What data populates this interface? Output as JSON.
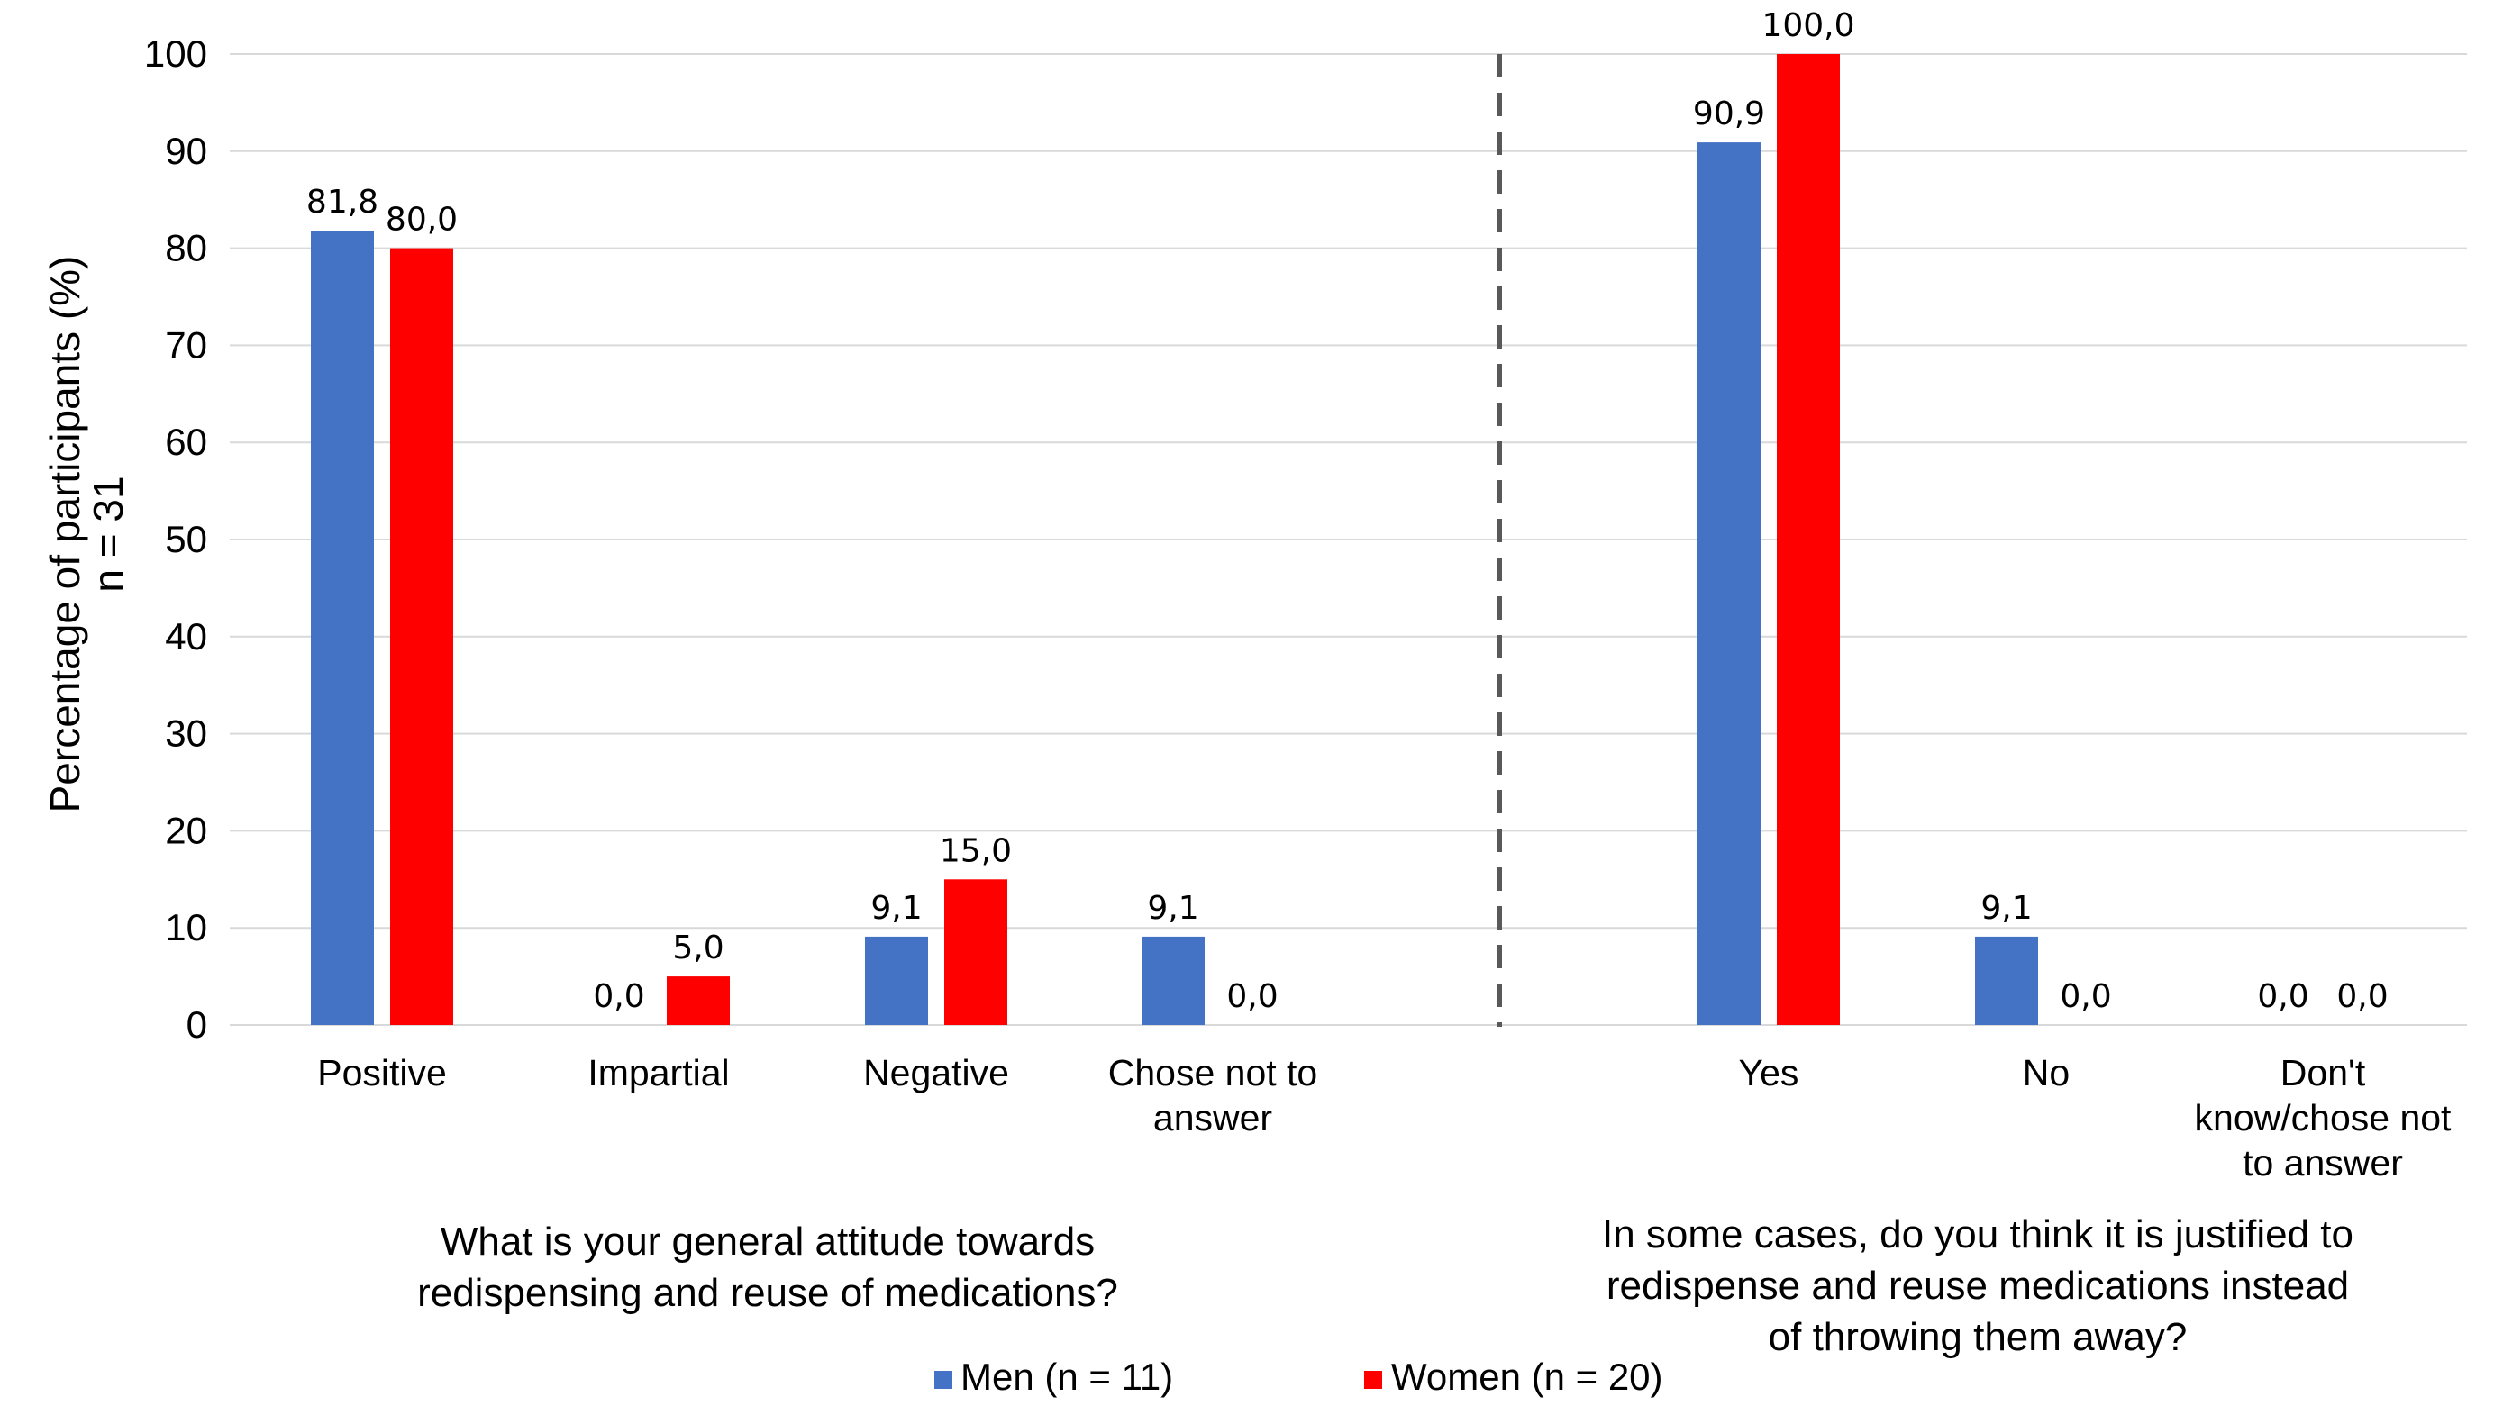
{
  "chart_data": {
    "type": "bar",
    "ylabel": "Percentage of participants (%)",
    "ylabel_line2": "n = 31",
    "ylim": [
      0,
      100
    ],
    "yticks": [
      0,
      10,
      20,
      30,
      40,
      50,
      60,
      70,
      80,
      90,
      100
    ],
    "grid": true,
    "legend_position": "bottom",
    "groups": [
      {
        "title": [
          "What is your general attitude towards",
          "redispensing and reuse of medications?"
        ],
        "categories": [
          [
            "Positive"
          ],
          [
            "Impartial"
          ],
          [
            "Negative"
          ],
          [
            "Chose not to",
            "answer"
          ]
        ],
        "series": [
          {
            "name": "Men (n = 11)",
            "values": [
              81.8,
              0.0,
              9.1,
              9.1
            ],
            "labels": [
              "81,8",
              "0,0",
              "9,1",
              "9,1"
            ]
          },
          {
            "name": "Women (n = 20)",
            "values": [
              80.0,
              5.0,
              15.0,
              0.0
            ],
            "labels": [
              "80,0",
              "5,0",
              "15,0",
              "0,0"
            ]
          }
        ]
      },
      {
        "title": [
          "In some cases, do you think it is justified to",
          "redispense and reuse medications instead",
          "of throwing them away?"
        ],
        "categories": [
          [
            "Yes"
          ],
          [
            "No"
          ],
          [
            "Don't",
            "know/chose not",
            "to answer"
          ]
        ],
        "series": [
          {
            "name": "Men (n = 11)",
            "values": [
              90.9,
              9.1,
              0.0
            ],
            "labels": [
              "90,9",
              "9,1",
              "0,0"
            ]
          },
          {
            "name": "Women (n = 20)",
            "values": [
              100.0,
              0.0,
              0.0
            ],
            "labels": [
              "100,0",
              "0,0",
              "0,0"
            ]
          }
        ]
      }
    ],
    "legend": [
      {
        "name": "Men (n = 11)",
        "color": "#4472C4"
      },
      {
        "name": "Women (n = 20)",
        "color": "#FF0000"
      }
    ],
    "colors": {
      "men": "#4472C4",
      "women": "#FF0000",
      "grid": "#D9D9D9",
      "divider": "#595959"
    }
  }
}
